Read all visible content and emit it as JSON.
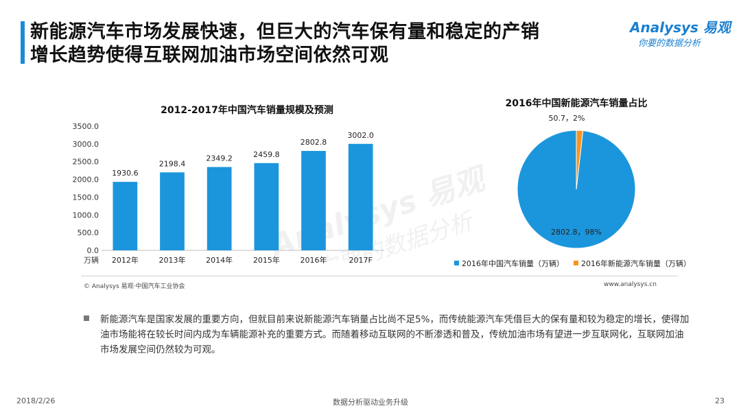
{
  "header": {
    "title_line1": "新能源汽车市场发展快速，但巨大的汽车保有量和稳定的产销",
    "title_line2": "增长趋势使得互联网加油市场空间依然可观"
  },
  "logo": {
    "brand": "Analysys 易观",
    "slogan": "你要的数据分析"
  },
  "watermark": {
    "brand": "Analysys 易观",
    "slogan": "你要的数据分析"
  },
  "colors": {
    "bar_blue": "#1b96dc",
    "pie_blue": "#1b96dc",
    "pie_orange": "#f7941d",
    "accent": "#1a8ad8"
  },
  "chart_data": [
    {
      "type": "bar",
      "title": "2012-2017年中国汽车销量规模及预测",
      "categories": [
        "2012年",
        "2013年",
        "2014年",
        "2015年",
        "2016年",
        "2017F"
      ],
      "values": [
        1930.6,
        2198.4,
        2349.2,
        2459.8,
        2802.8,
        3002.0
      ],
      "value_labels": [
        "1930.6",
        "2198.4",
        "2349.2",
        "2459.8",
        "2802.8",
        "3002.0"
      ],
      "ylim": [
        0,
        3500
      ],
      "yticks": [
        0,
        500,
        1000,
        1500,
        2000,
        2500,
        3000,
        3500
      ],
      "ytick_labels": [
        "0.0",
        "500.0",
        "1000.0",
        "1500.0",
        "2000.0",
        "2500.0",
        "3000.0",
        "3500.0"
      ],
      "yunit": "万辆",
      "xlabel": "",
      "ylabel": ""
    },
    {
      "type": "pie",
      "title": "2016年中国新能源汽车销量占比",
      "slices": [
        {
          "label": "2016年中国汽车销量（万辆）",
          "value": 2802.8,
          "percent": 98,
          "text": "2802.8，98%"
        },
        {
          "label": "2016年新能源汽车销量（万辆）",
          "value": 50.7,
          "percent": 2,
          "text": "50.7，2%"
        }
      ],
      "legend_position": "bottom"
    }
  ],
  "source_text": "© Analysys 易观·中国汽车工业协会",
  "website": "www.analysys.cn",
  "bullet_text": "新能源汽车是国家发展的重要方向，但就目前来说新能源汽车销量占比尚不足5%，而传统能源汽车凭借巨大的保有量和较为稳定的增长，使得加油市场能将在较长时间内成为车辆能源补充的重要方式。而随着移动互联网的不断渗透和普及，传统加油市场有望进一步互联网化，互联网加油市场发展空间仍然较为可观。",
  "footer": {
    "date": "2018/2/26",
    "center": "数据分析驱动业务升级",
    "page": "23"
  }
}
